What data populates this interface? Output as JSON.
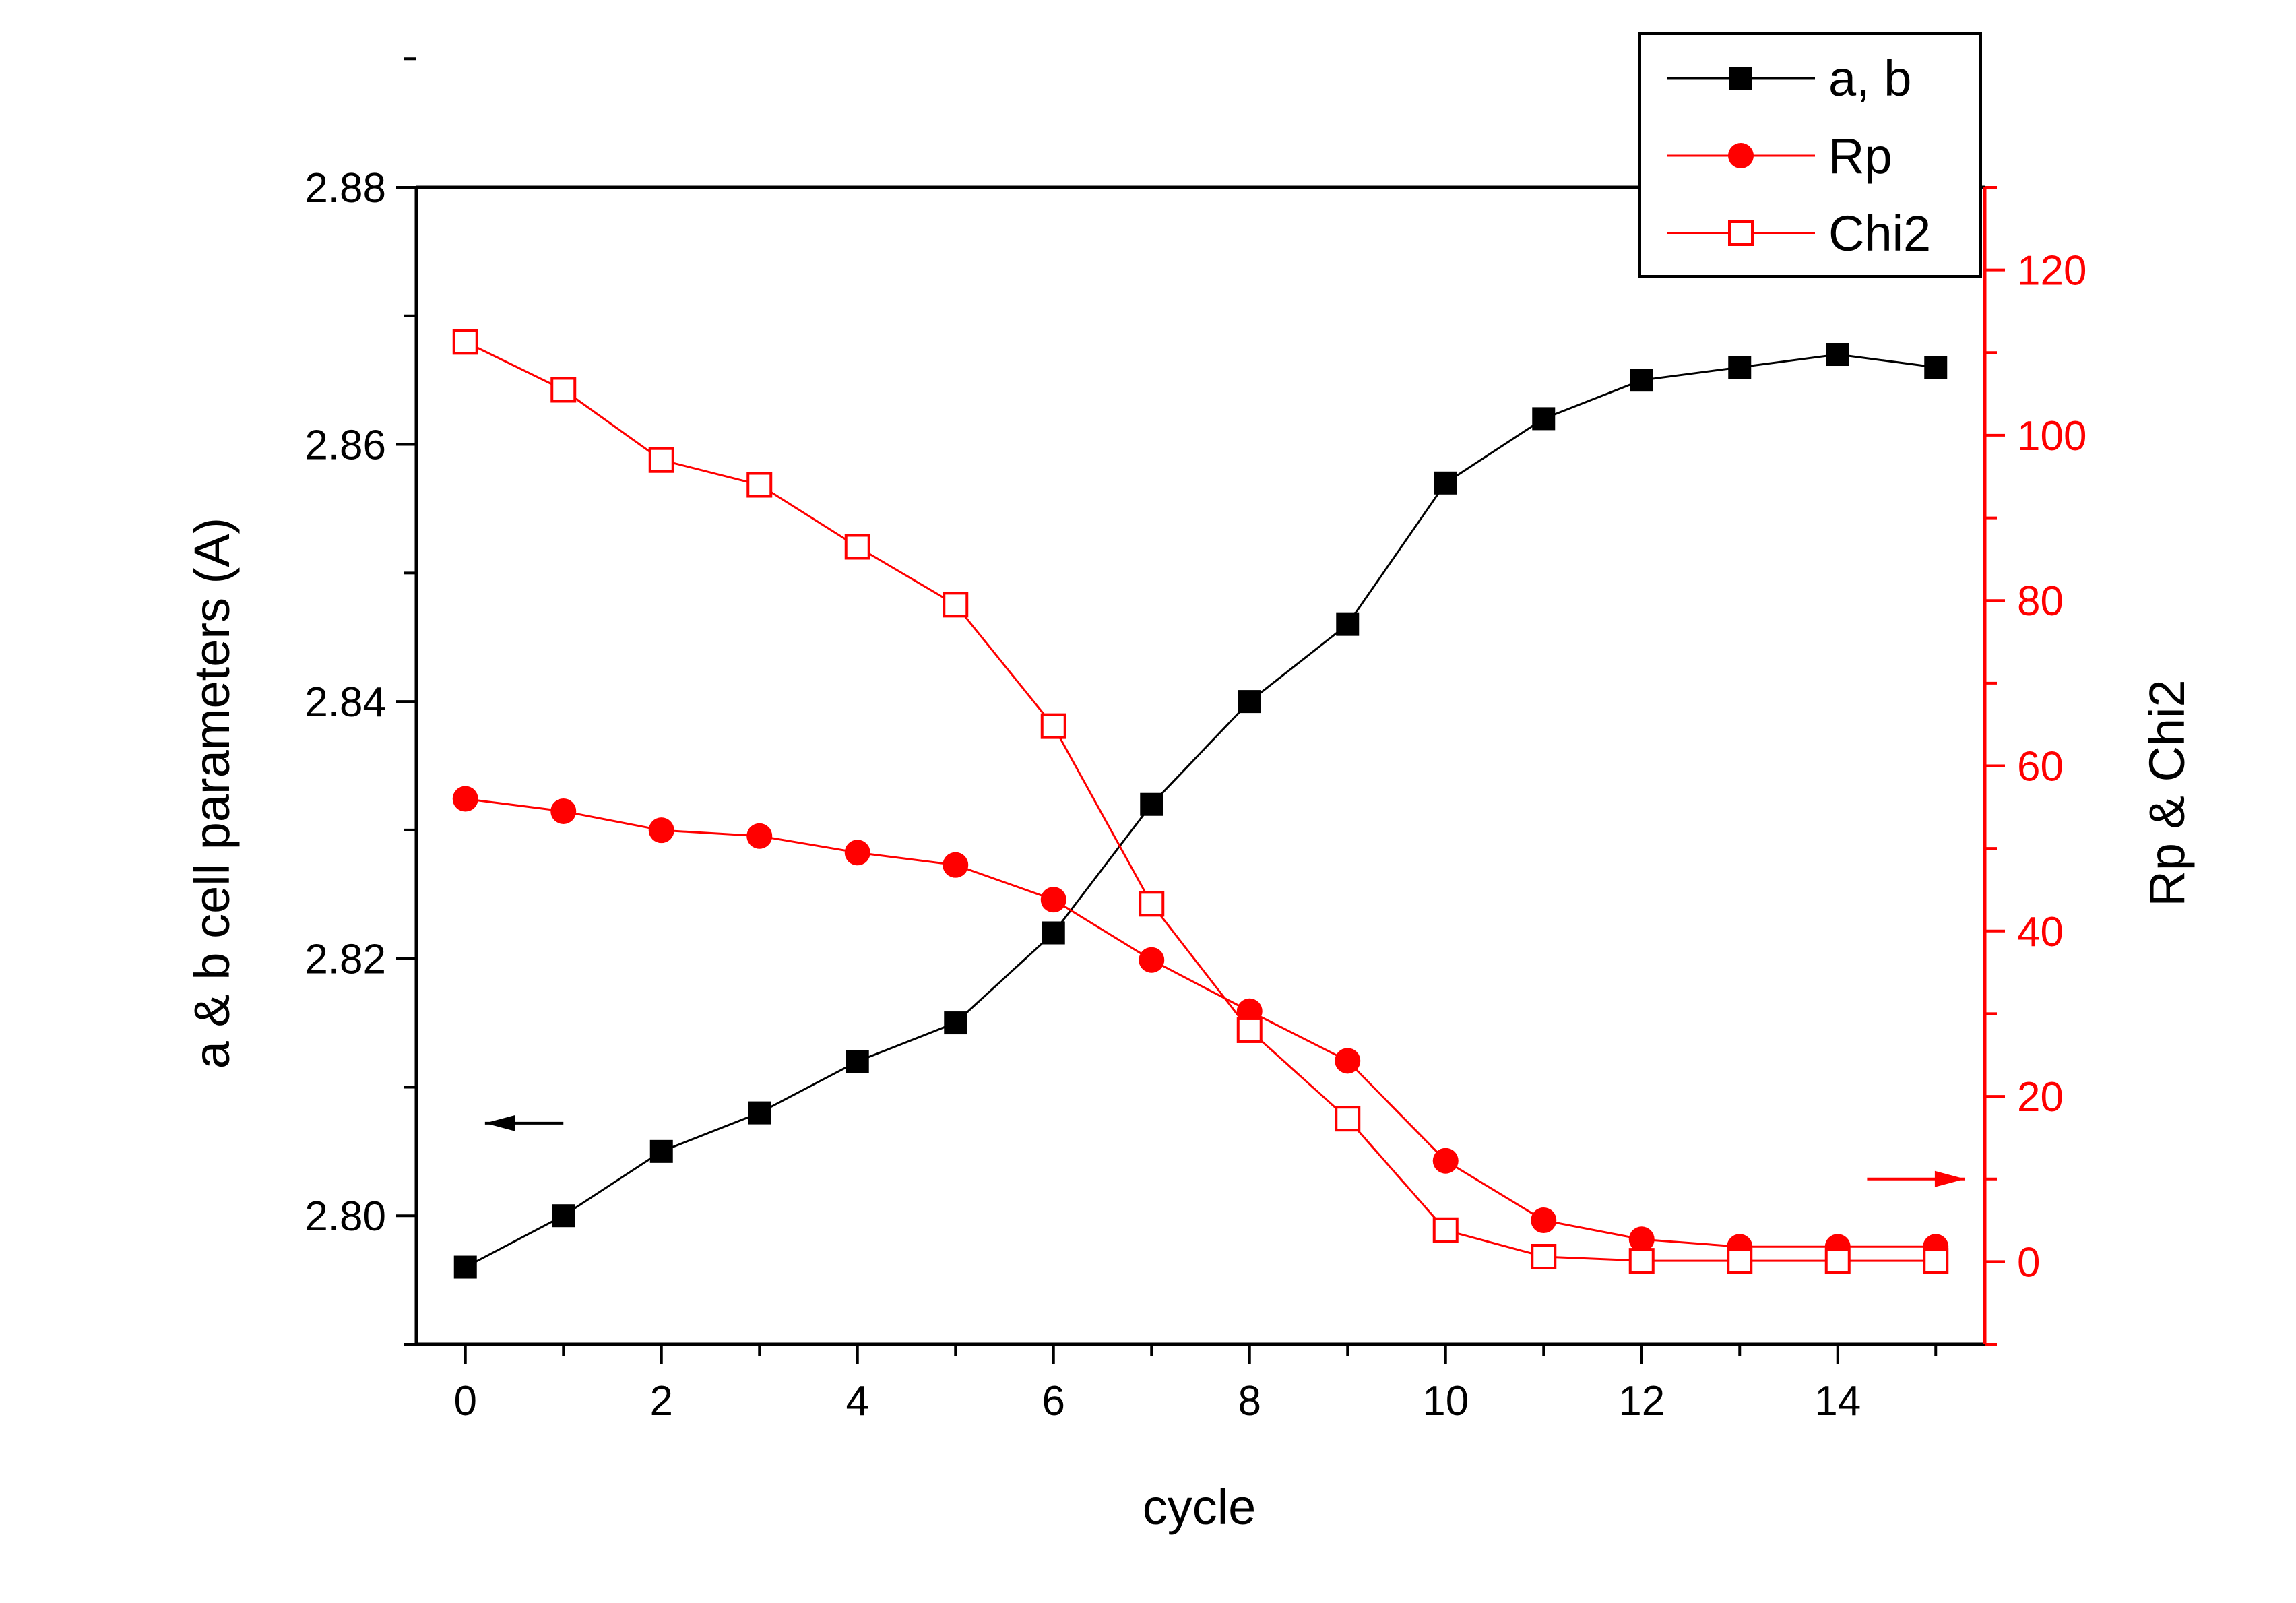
{
  "chart_data": {
    "type": "line",
    "xlabel": "cycle",
    "ylabel_left": "a & b cell parameters (A)",
    "ylabel_right": "Rp & Chi2",
    "xlim": [
      -0.5,
      15.5
    ],
    "ylim_left": [
      2.79,
      2.88
    ],
    "ylim_right": [
      -10,
      130
    ],
    "x_ticks": [
      0,
      2,
      4,
      6,
      8,
      10,
      12,
      14
    ],
    "y_left_ticks": [
      2.8,
      2.82,
      2.84,
      2.86,
      2.88
    ],
    "y_left_tick_labels": [
      "2.80",
      "2.82",
      "2.84",
      "2.86",
      "2.88"
    ],
    "y_right_ticks": [
      0,
      20,
      40,
      60,
      80,
      100,
      120
    ],
    "legend_position": "top-right",
    "grid": false,
    "x": [
      0,
      1,
      2,
      3,
      4,
      5,
      6,
      7,
      8,
      9,
      10,
      11,
      12,
      13,
      14,
      15
    ],
    "series": [
      {
        "name": "a, b",
        "axis": "left",
        "color": "#000000",
        "marker": "filled-square",
        "values": [
          2.796,
          2.8,
          2.805,
          2.808,
          2.812,
          2.815,
          2.822,
          2.832,
          2.84,
          2.846,
          2.857,
          2.862,
          2.865,
          2.866,
          2.867,
          2.866
        ]
      },
      {
        "name": "Rp",
        "axis": "right",
        "color": "#ff0000",
        "marker": "filled-circle",
        "values": [
          56.0,
          54.5,
          52.2,
          51.5,
          49.5,
          48.0,
          43.8,
          36.5,
          30.3,
          24.3,
          12.2,
          5.0,
          2.7,
          1.8,
          1.8,
          1.8
        ]
      },
      {
        "name": "Chi2",
        "axis": "right",
        "color": "#ff0000",
        "marker": "open-square",
        "values": [
          111.3,
          105.5,
          97.0,
          94.0,
          86.5,
          79.5,
          64.8,
          43.3,
          28.0,
          17.3,
          3.8,
          0.6,
          0.1,
          0.1,
          0.1,
          0.1
        ]
      }
    ],
    "annotations": [
      {
        "type": "arrow",
        "direction": "left",
        "axis": "left",
        "color": "#000000",
        "x": [
          0.2,
          1.0
        ],
        "y": 2.8072
      },
      {
        "type": "arrow",
        "direction": "right",
        "axis": "right",
        "color": "#ff0000",
        "x": [
          14.3,
          15.3
        ],
        "y": 10
      }
    ]
  }
}
